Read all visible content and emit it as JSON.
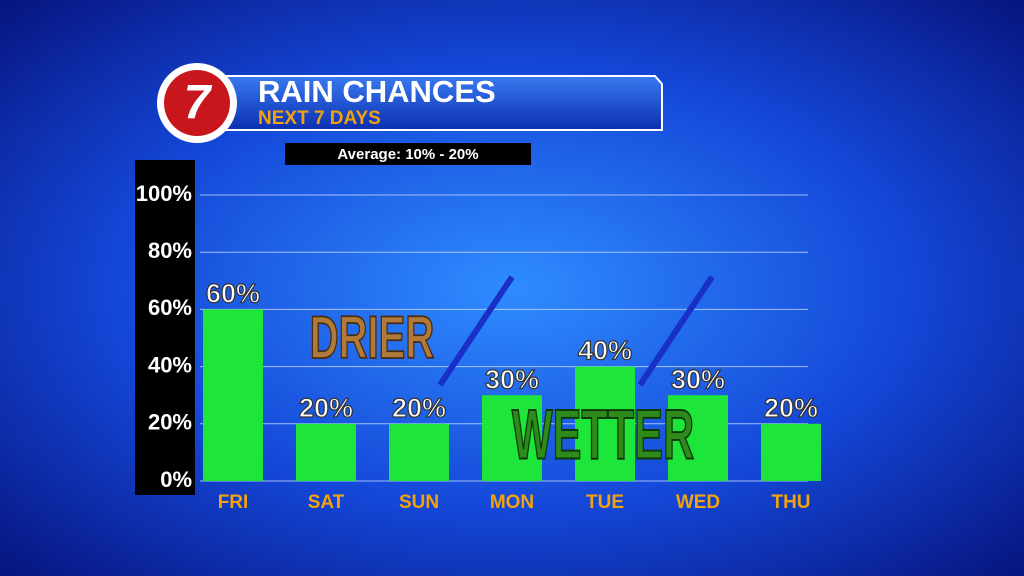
{
  "logo": "7",
  "chart_data": {
    "type": "bar",
    "title": "RAIN CHANCES",
    "subtitle": "NEXT 7 DAYS",
    "annotations": [
      "Average: 10% - 20%",
      "DRIER",
      "WETTER"
    ],
    "categories": [
      "FRI",
      "SAT",
      "SUN",
      "MON",
      "TUE",
      "WED",
      "THU"
    ],
    "values": [
      60,
      20,
      20,
      30,
      40,
      30,
      20
    ],
    "value_labels": [
      "60%",
      "20%",
      "20%",
      "30%",
      "40%",
      "30%",
      "20%"
    ],
    "color": "#1de53a",
    "ylim": [
      0,
      100
    ],
    "yticks": [
      {
        "value": 0,
        "label": "0%"
      },
      {
        "value": 20,
        "label": "20%"
      },
      {
        "value": 40,
        "label": "40%"
      },
      {
        "value": 60,
        "label": "60%"
      },
      {
        "value": 80,
        "label": "80%"
      },
      {
        "value": 100,
        "label": "100%"
      }
    ],
    "grid": true
  }
}
